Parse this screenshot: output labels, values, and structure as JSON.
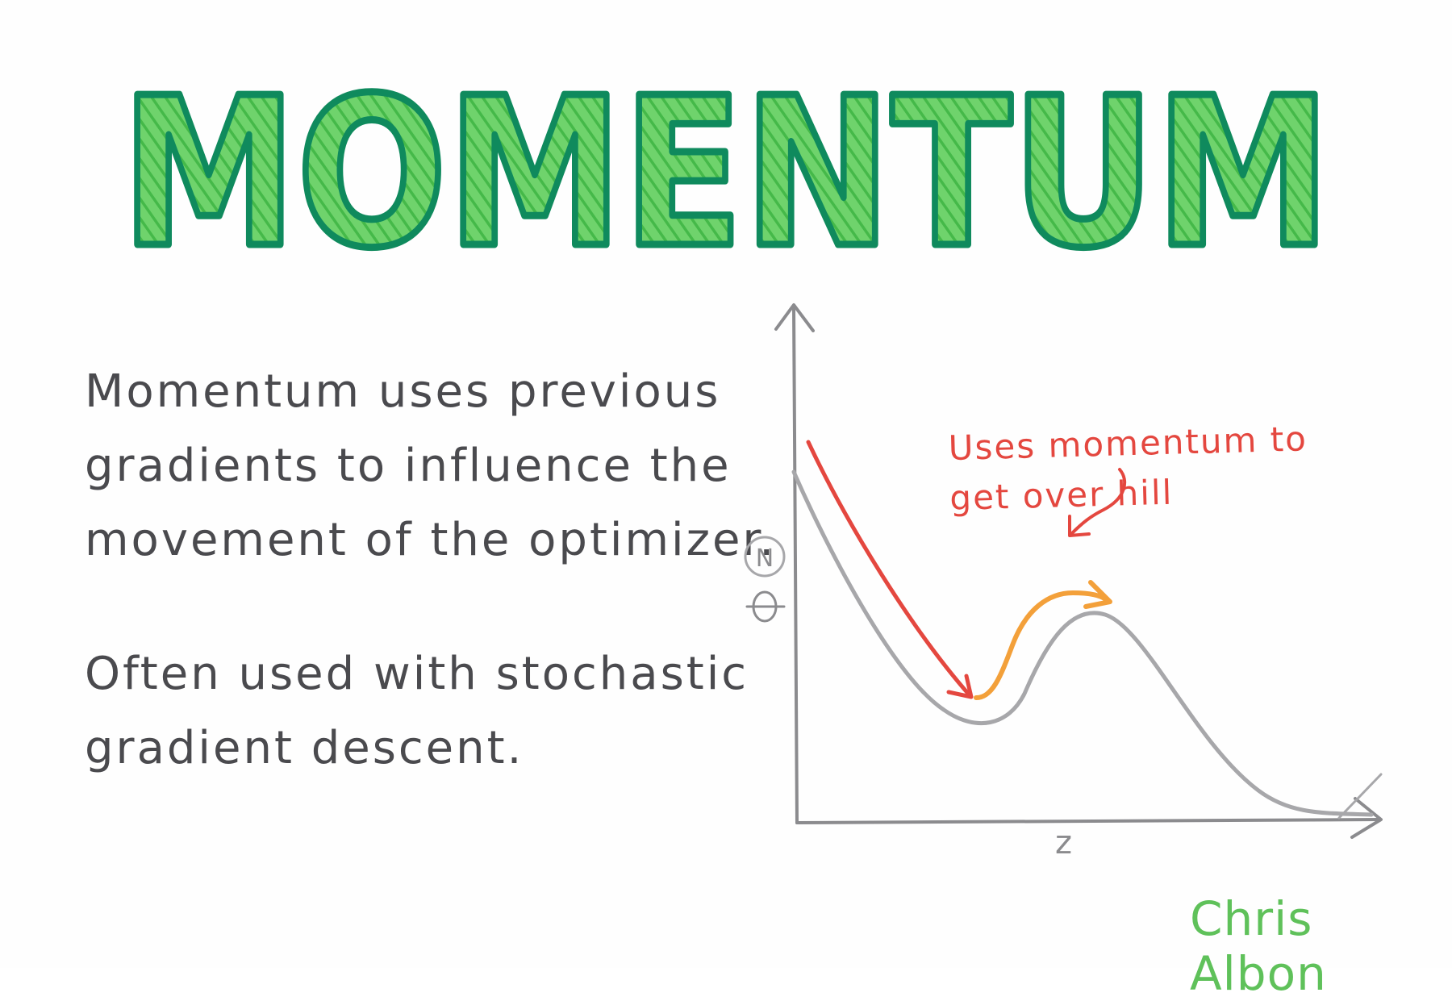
{
  "title": "MOMENTUM",
  "description": {
    "paragraph_1": [
      "Momentum uses previous",
      "gradients to influence the",
      "movement of the optimizer."
    ],
    "paragraph_2": [
      "Often used with stochastic",
      "gradient descent."
    ]
  },
  "diagram": {
    "x_axis_label": "z",
    "y_axis_label": "N",
    "annotation": [
      "Uses momentum to",
      "get over hill"
    ]
  },
  "signature": "Chris Albon",
  "colors": {
    "title_fill": "#5cc95a",
    "title_outline": "#0f8a5d",
    "text": "#4a4a4e",
    "curve": "#a7a7aa",
    "axis": "#8b8b8e",
    "momentum_arrow": "#e4473f",
    "over_hill_arrow": "#f3a03a",
    "signature": "#5fc15a"
  }
}
